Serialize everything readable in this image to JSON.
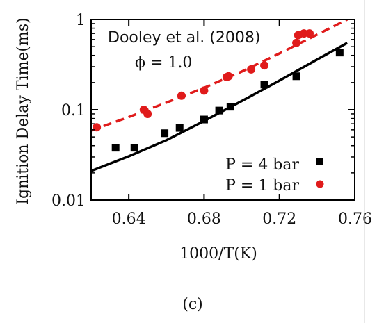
{
  "chart_data": {
    "type": "scatter",
    "title": "",
    "annotation_lines": [
      "Dooley et al. (2008)",
      "ϕ = 1.0"
    ],
    "xlabel": "1000/T(K)",
    "ylabel": "Ignition Delay Time(ms)",
    "xlim": [
      0.62,
      0.76
    ],
    "ylim": [
      0.01,
      1
    ],
    "y_scale": "log",
    "x_ticks": [
      0.64,
      0.68,
      0.72,
      0.76
    ],
    "x_tick_labels": [
      "0.64",
      "0.68",
      "0.72",
      "0.76"
    ],
    "y_ticks": [
      0.01,
      0.1,
      1
    ],
    "y_tick_labels": [
      "0.01",
      "0.1",
      "1"
    ],
    "grid": false,
    "legend_position": "bottom-right",
    "caption": "(c)",
    "series": [
      {
        "name": "P = 4 bar",
        "marker": "square",
        "color": "#000000",
        "points": [
          [
            0.633,
            0.038
          ],
          [
            0.643,
            0.038
          ],
          [
            0.659,
            0.055
          ],
          [
            0.667,
            0.063
          ],
          [
            0.68,
            0.078
          ],
          [
            0.688,
            0.098
          ],
          [
            0.694,
            0.108
          ],
          [
            0.712,
            0.19
          ],
          [
            0.729,
            0.235
          ],
          [
            0.752,
            0.43
          ]
        ]
      },
      {
        "name": "P = 1 bar",
        "marker": "circle",
        "color": "#e01b1b",
        "points": [
          [
            0.623,
            0.064
          ],
          [
            0.648,
            0.1
          ],
          [
            0.65,
            0.09
          ],
          [
            0.668,
            0.143
          ],
          [
            0.68,
            0.163
          ],
          [
            0.692,
            0.23
          ],
          [
            0.693,
            0.235
          ],
          [
            0.705,
            0.28
          ],
          [
            0.712,
            0.31
          ],
          [
            0.729,
            0.55
          ],
          [
            0.73,
            0.67
          ],
          [
            0.733,
            0.7
          ],
          [
            0.736,
            0.7
          ]
        ]
      }
    ],
    "fit_lines": [
      {
        "for": "P = 4 bar",
        "style": "solid",
        "color": "#000000",
        "points": [
          [
            0.62,
            0.021
          ],
          [
            0.64,
            0.0305
          ],
          [
            0.66,
            0.046
          ],
          [
            0.68,
            0.075
          ],
          [
            0.7,
            0.125
          ],
          [
            0.72,
            0.21
          ],
          [
            0.74,
            0.36
          ],
          [
            0.756,
            0.55
          ]
        ]
      },
      {
        "for": "P = 1 bar",
        "style": "dashed",
        "color": "#e01b1b",
        "points": [
          [
            0.62,
            0.059
          ],
          [
            0.64,
            0.083
          ],
          [
            0.66,
            0.12
          ],
          [
            0.68,
            0.175
          ],
          [
            0.7,
            0.265
          ],
          [
            0.72,
            0.42
          ],
          [
            0.74,
            0.68
          ],
          [
            0.756,
            1.0
          ]
        ]
      }
    ]
  }
}
